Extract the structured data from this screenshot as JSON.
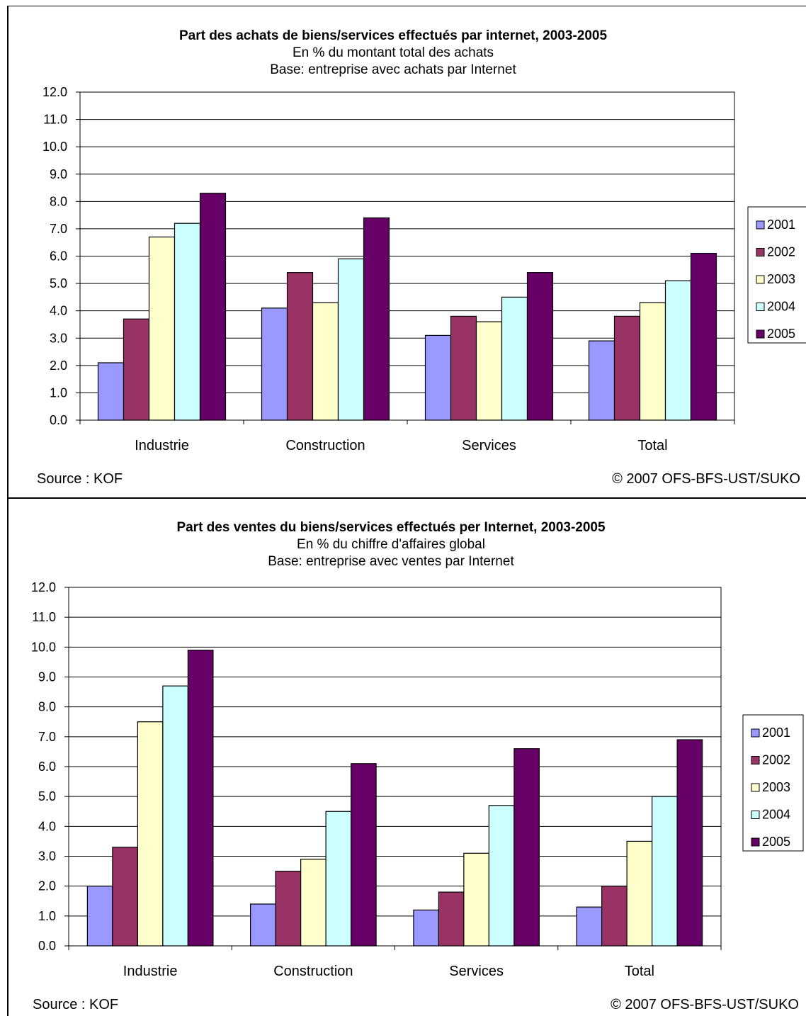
{
  "colors": {
    "2001": "#9999ff",
    "2002": "#993366",
    "2003": "#ffffcc",
    "2004": "#ccffff",
    "2005": "#660066",
    "frame": "#000000",
    "background": "#ffffff"
  },
  "charts": [
    {
      "title": "Part des achats de biens/services effectués par internet, 2003-2005",
      "subtitle1": "En % du montant total des achats",
      "subtitle2": "Base: entreprise avec achats par Internet",
      "source": "Source : KOF",
      "copyright": "© 2007 OFS-BFS-UST/SUKO"
    },
    {
      "title": "Part des ventes du biens/services effectués per Internet, 2003-2005",
      "subtitle1": "En % du chiffre d'affaires global",
      "subtitle2": "Base: entreprise avec ventes par Internet",
      "source": "Source : KOF",
      "copyright": "© 2007 OFS-BFS-UST/SUKO"
    }
  ],
  "chart_data": [
    {
      "type": "bar",
      "title": "Part des achats de biens/services effectués par internet, 2003-2005",
      "subtitle": [
        "En % du montant total des achats",
        "Base: entreprise avec achats par Internet"
      ],
      "categories": [
        "Industrie",
        "Construction",
        "Services",
        "Total"
      ],
      "yticks": [
        "0.0",
        "1.0",
        "2.0",
        "3.0",
        "4.0",
        "5.0",
        "6.0",
        "7.0",
        "8.0",
        "9.0",
        "10.0",
        "11.0",
        "12.0"
      ],
      "ylim": [
        0,
        12
      ],
      "grid": true,
      "legend": "right",
      "series": [
        {
          "name": "2001",
          "values": [
            2.1,
            4.1,
            3.1,
            2.9
          ]
        },
        {
          "name": "2002",
          "values": [
            3.7,
            5.4,
            3.8,
            3.8
          ]
        },
        {
          "name": "2003",
          "values": [
            6.7,
            4.3,
            3.6,
            4.3
          ]
        },
        {
          "name": "2004",
          "values": [
            7.2,
            5.9,
            4.5,
            5.1
          ]
        },
        {
          "name": "2005",
          "values": [
            8.3,
            7.4,
            5.4,
            6.1
          ]
        }
      ]
    },
    {
      "type": "bar",
      "title": "Part des ventes du biens/services effectués per Internet, 2003-2005",
      "subtitle": [
        "En % du chiffre d'affaires global",
        "Base: entreprise avec ventes par Internet"
      ],
      "categories": [
        "Industrie",
        "Construction",
        "Services",
        "Total"
      ],
      "yticks": [
        "0.0",
        "1.0",
        "2.0",
        "3.0",
        "4.0",
        "5.0",
        "6.0",
        "7.0",
        "8.0",
        "9.0",
        "10.0",
        "11.0",
        "12.0"
      ],
      "ylim": [
        0,
        12
      ],
      "grid": true,
      "legend": "right",
      "series": [
        {
          "name": "2001",
          "values": [
            2.0,
            1.4,
            1.2,
            1.3
          ]
        },
        {
          "name": "2002",
          "values": [
            3.3,
            2.5,
            1.8,
            2.0
          ]
        },
        {
          "name": "2003",
          "values": [
            7.5,
            2.9,
            3.1,
            3.5
          ]
        },
        {
          "name": "2004",
          "values": [
            8.7,
            4.5,
            4.7,
            5.0
          ]
        },
        {
          "name": "2005",
          "values": [
            9.9,
            6.1,
            6.6,
            6.9
          ]
        }
      ]
    }
  ]
}
